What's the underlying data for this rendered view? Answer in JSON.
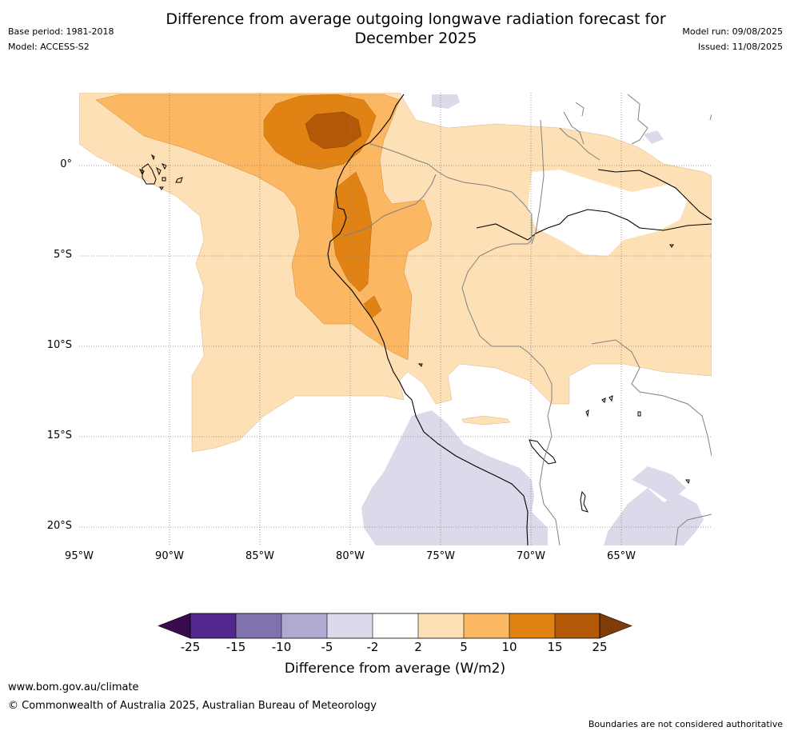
{
  "header": {
    "title_line1": "Difference from average outgoing longwave radiation forecast for",
    "title_line2": "December 2025",
    "base_period": "Base period: 1981-2018",
    "model": "Model: ACCESS-S2",
    "model_run": "Model run: 09/08/2025",
    "issued": "Issued: 11/08/2025"
  },
  "map": {
    "lon_range": [
      -95,
      -60
    ],
    "lat_range": [
      -21,
      4
    ],
    "lat_labels": [
      "0°",
      "5°S",
      "10°S",
      "15°S",
      "20°S"
    ],
    "lon_labels": [
      "95°W",
      "90°W",
      "85°W",
      "80°W",
      "75°W",
      "70°W",
      "65°W"
    ],
    "gridlines": "dotted"
  },
  "colorbar": {
    "title": "Difference from average (W/m2)",
    "ticks": [
      "-25",
      "-15",
      "-10",
      "-5",
      "-2",
      "2",
      "5",
      "10",
      "15",
      "25"
    ],
    "colors": [
      "#3a0a4f",
      "#54278f",
      "#8072ad",
      "#b1a9d2",
      "#dadaeb",
      "#ffffff",
      "#fee0b6",
      "#fbb761",
      "#e08214",
      "#b35806",
      "#7f3b08"
    ]
  },
  "footer": {
    "url": "www.bom.gov.au/climate",
    "copyright": "© Commonwealth of Australia 2025, Australian Bureau of Meteorology",
    "note": "Boundaries are not considered authoritative"
  }
}
